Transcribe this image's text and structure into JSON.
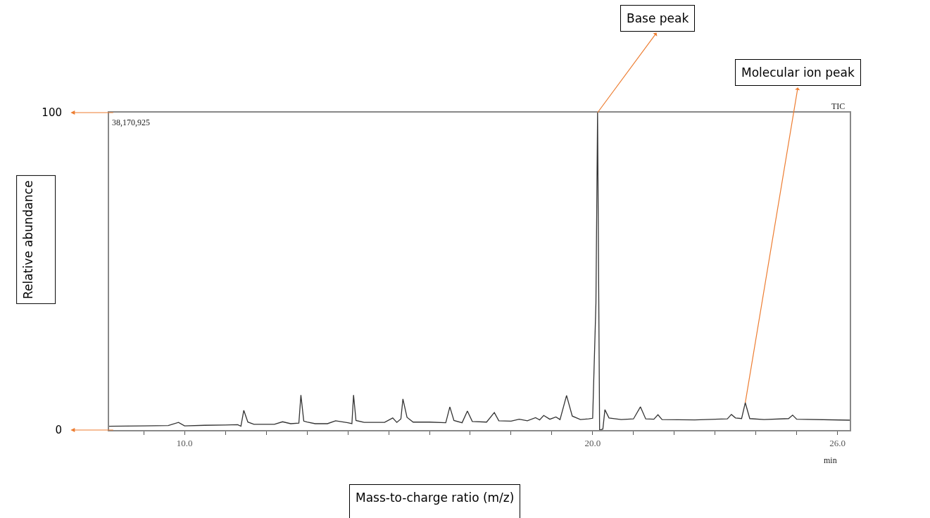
{
  "chart_data": {
    "type": "line",
    "xlabel": "Mass-to-charge ratio (m/z)",
    "ylabel": "Relative abundance",
    "x": [
      8.15,
      9.0,
      9.6,
      9.85,
      10.0,
      10.5,
      11.0,
      11.3,
      11.38,
      11.45,
      11.55,
      11.7,
      12.2,
      12.4,
      12.6,
      12.8,
      12.85,
      12.92,
      13.0,
      13.2,
      13.5,
      13.7,
      14.0,
      14.1,
      14.14,
      14.2,
      14.4,
      14.9,
      15.1,
      15.2,
      15.3,
      15.35,
      15.45,
      15.6,
      16.0,
      16.4,
      16.5,
      16.6,
      16.8,
      16.93,
      17.05,
      17.4,
      17.59,
      17.7,
      18.0,
      18.2,
      18.4,
      18.6,
      18.7,
      18.8,
      18.95,
      19.1,
      19.2,
      19.36,
      19.5,
      19.7,
      19.9,
      20.0,
      20.08,
      20.12,
      20.17,
      20.25,
      20.3,
      20.4,
      20.7,
      21.0,
      21.17,
      21.3,
      21.5,
      21.6,
      21.7,
      22.5,
      23.3,
      23.4,
      23.5,
      23.65,
      23.74,
      23.85,
      24.2,
      24.8,
      24.9,
      25.0,
      26.3
    ],
    "series": [
      {
        "color": "#333333",
        "values": [
          1.2,
          1.3,
          1.4,
          2.4,
          1.3,
          1.5,
          1.6,
          1.7,
          1.2,
          6.2,
          2.5,
          1.8,
          1.8,
          2.6,
          2.0,
          2.2,
          11,
          2.8,
          2.5,
          2.0,
          2.0,
          2.9,
          2.3,
          2.0,
          11,
          3,
          2.4,
          2.4,
          3.8,
          2.4,
          3.5,
          9.8,
          4,
          2.5,
          2.5,
          2.3,
          7.3,
          3,
          2.3,
          6,
          2.7,
          2.5,
          5.5,
          2.9,
          2.8,
          3.4,
          2.9,
          3.9,
          3.2,
          4.6,
          3.4,
          4.1,
          3.3,
          10.9,
          4.4,
          3.3,
          3.5,
          3.7,
          40,
          100,
          0,
          0.3,
          6.4,
          3.8,
          3.3,
          3.5,
          7.3,
          3.5,
          3.4,
          4.8,
          3.3,
          3.2,
          3.5,
          4.9,
          3.8,
          3.6,
          8.6,
          3.6,
          3.3,
          3.6,
          4.7,
          3.4,
          3.1
        ]
      }
    ],
    "xlim": [
      8.15,
      26.3
    ],
    "ylim": [
      0,
      100
    ],
    "xticks": [
      {
        "value": 9,
        "label": null
      },
      {
        "value": 10,
        "label": "10.0"
      },
      {
        "value": 11,
        "label": null
      },
      {
        "value": 12,
        "label": null
      },
      {
        "value": 13,
        "label": null
      },
      {
        "value": 14,
        "label": null
      },
      {
        "value": 15,
        "label": null
      },
      {
        "value": 16,
        "label": null
      },
      {
        "value": 17,
        "label": null
      },
      {
        "value": 18,
        "label": null
      },
      {
        "value": 19,
        "label": null
      },
      {
        "value": 20,
        "label": "20.0"
      },
      {
        "value": 21,
        "label": null
      },
      {
        "value": 22,
        "label": null
      },
      {
        "value": 23,
        "label": null
      },
      {
        "value": 24,
        "label": null
      },
      {
        "value": 25,
        "label": null
      },
      {
        "value": 26,
        "label": "26.0"
      }
    ],
    "yticks": [
      0,
      100
    ],
    "annotations": [
      "38,170,925",
      "TIC",
      "min",
      {
        "text": "Base peak",
        "x": 20.12,
        "y": 100
      },
      {
        "text": "Molecular ion peak",
        "x": 23.74,
        "y": 8.6
      }
    ],
    "grid": false,
    "marker": "none",
    "line_style": "solid"
  }
}
